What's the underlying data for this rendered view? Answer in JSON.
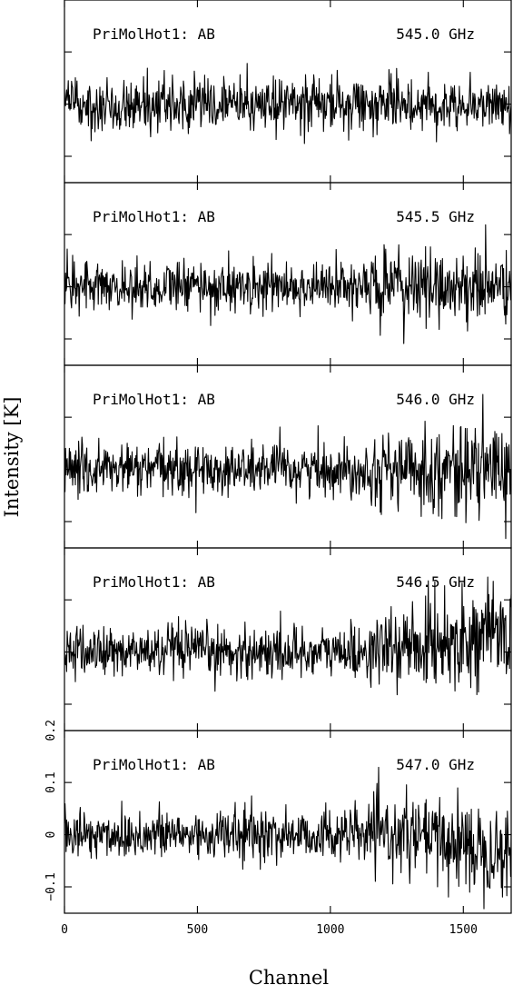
{
  "chart_data": {
    "type": "line",
    "xlabel": "Channel",
    "ylabel": "Intensity [K]",
    "xlim": [
      0,
      1680
    ],
    "ylim": [
      -0.15,
      0.2
    ],
    "x_ticks": [
      0,
      500,
      1000,
      1500
    ],
    "x_tick_labels": [
      "0",
      "500",
      "1000",
      "1500"
    ],
    "y_ticks": [
      -0.1,
      0,
      0.1,
      0.2
    ],
    "y_tick_labels": [
      "−0.1",
      "0",
      "0.1",
      "0.2"
    ],
    "grid": false,
    "noise_rms": 0.025,
    "panels": [
      {
        "label": "PriMolHot1: AB",
        "frequency": "545.0 GHz"
      },
      {
        "label": "PriMolHot1: AB",
        "frequency": "545.5 GHz"
      },
      {
        "label": "PriMolHot1: AB",
        "frequency": "546.0 GHz"
      },
      {
        "label": "PriMolHot1: AB",
        "frequency": "546.5 GHz"
      },
      {
        "label": "PriMolHot1: AB",
        "frequency": "547.0 GHz"
      }
    ]
  }
}
